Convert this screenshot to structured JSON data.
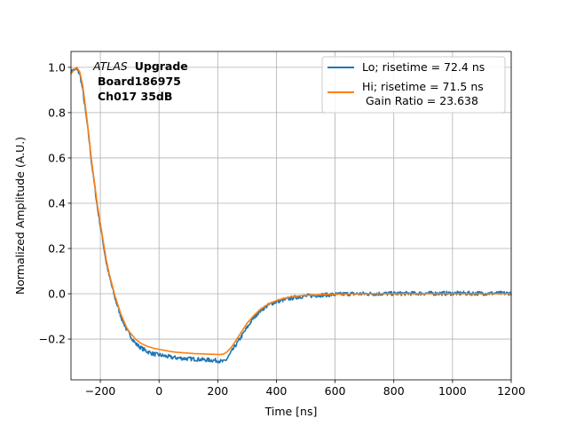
{
  "chart_data": {
    "type": "line",
    "xlabel": "Time [ns]",
    "ylabel": "Normalized Amplitude (A.U.)",
    "xlim": [
      -300,
      1200
    ],
    "ylim": [
      -0.38,
      1.07
    ],
    "xticks": [
      -200,
      0,
      200,
      400,
      600,
      800,
      1000,
      1200
    ],
    "yticks": [
      -0.2,
      0.0,
      0.2,
      0.4,
      0.6,
      0.8,
      1.0
    ],
    "xtick_labels": [
      "−200",
      "0",
      "200",
      "400",
      "600",
      "800",
      "1000",
      "1200"
    ],
    "ytick_labels": [
      "−0.2",
      "0.0",
      "0.2",
      "0.4",
      "0.6",
      "0.8",
      "1.0"
    ],
    "grid": true,
    "legend_position": "top-right",
    "annotation": {
      "italic": "ATLAS",
      "bold": "Upgrade",
      "line2": "Board186975",
      "line3": "Ch017 35dB"
    },
    "series": [
      {
        "name": "Lo; risetime = 72.4 ns",
        "color": "#1f77b4",
        "noisy": true,
        "x": [
          -300,
          -290,
          -280,
          -270,
          -260,
          -250,
          -240,
          -230,
          -220,
          -210,
          -200,
          -190,
          -180,
          -170,
          -160,
          -150,
          -140,
          -130,
          -120,
          -110,
          -100,
          -90,
          -80,
          -60,
          -40,
          -20,
          0,
          20,
          40,
          60,
          80,
          100,
          120,
          140,
          160,
          180,
          200,
          210,
          220,
          230,
          240,
          250,
          260,
          280,
          300,
          320,
          340,
          360,
          380,
          400,
          420,
          440,
          460,
          480,
          500,
          550,
          600,
          650,
          700,
          800,
          900,
          1000,
          1100,
          1200
        ],
        "y": [
          0.98,
          0.99,
          0.99,
          0.97,
          0.9,
          0.8,
          0.7,
          0.58,
          0.48,
          0.38,
          0.3,
          0.22,
          0.14,
          0.08,
          0.03,
          -0.02,
          -0.06,
          -0.1,
          -0.13,
          -0.16,
          -0.18,
          -0.2,
          -0.22,
          -0.24,
          -0.255,
          -0.265,
          -0.27,
          -0.275,
          -0.28,
          -0.283,
          -0.285,
          -0.287,
          -0.288,
          -0.29,
          -0.292,
          -0.293,
          -0.295,
          -0.298,
          -0.3,
          -0.29,
          -0.27,
          -0.25,
          -0.23,
          -0.19,
          -0.15,
          -0.11,
          -0.08,
          -0.06,
          -0.045,
          -0.035,
          -0.028,
          -0.022,
          -0.017,
          -0.013,
          -0.01,
          -0.006,
          -0.003,
          0.0,
          0.0,
          0.001,
          0.002,
          0.002,
          0.002,
          0.002
        ]
      },
      {
        "name": "Hi; risetime = 71.5 ns",
        "name_line2": "Gain Ratio = 23.638",
        "color": "#ff7f0e",
        "noisy": false,
        "x": [
          -300,
          -290,
          -280,
          -270,
          -260,
          -250,
          -240,
          -230,
          -220,
          -210,
          -200,
          -190,
          -180,
          -170,
          -160,
          -150,
          -140,
          -130,
          -120,
          -110,
          -100,
          -90,
          -80,
          -60,
          -40,
          -20,
          0,
          20,
          40,
          60,
          80,
          100,
          120,
          140,
          160,
          180,
          200,
          210,
          220,
          230,
          240,
          250,
          260,
          280,
          300,
          320,
          340,
          360,
          380,
          400,
          420,
          440,
          460,
          480,
          500,
          550,
          600,
          650,
          700,
          800,
          900,
          1000,
          1100,
          1200
        ],
        "y": [
          0.97,
          0.99,
          1.0,
          0.98,
          0.92,
          0.82,
          0.71,
          0.59,
          0.49,
          0.39,
          0.31,
          0.23,
          0.15,
          0.09,
          0.04,
          -0.01,
          -0.05,
          -0.09,
          -0.12,
          -0.15,
          -0.17,
          -0.185,
          -0.2,
          -0.22,
          -0.232,
          -0.24,
          -0.245,
          -0.25,
          -0.255,
          -0.258,
          -0.26,
          -0.262,
          -0.264,
          -0.265,
          -0.266,
          -0.267,
          -0.268,
          -0.268,
          -0.266,
          -0.258,
          -0.245,
          -0.23,
          -0.21,
          -0.17,
          -0.13,
          -0.1,
          -0.075,
          -0.055,
          -0.04,
          -0.03,
          -0.022,
          -0.016,
          -0.012,
          -0.009,
          -0.007,
          -0.004,
          -0.002,
          -0.001,
          0.0,
          0.0,
          0.0,
          0.0,
          0.0,
          0.0
        ]
      }
    ]
  }
}
